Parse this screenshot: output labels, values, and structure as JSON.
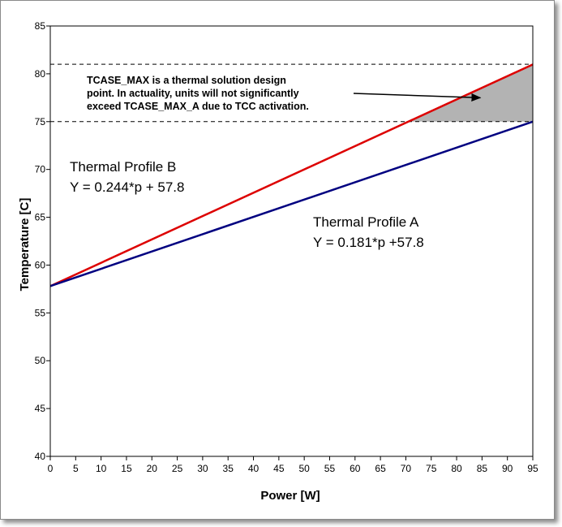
{
  "chart_data": {
    "type": "line",
    "title": "",
    "xlabel": "Power [W]",
    "ylabel": "Temperature [C]",
    "xlim": [
      0,
      95
    ],
    "ylim": [
      40,
      85
    ],
    "xticks": [
      0,
      5,
      10,
      15,
      20,
      25,
      30,
      35,
      40,
      45,
      50,
      55,
      60,
      65,
      70,
      75,
      80,
      85,
      90,
      95
    ],
    "yticks": [
      40,
      45,
      50,
      55,
      60,
      65,
      70,
      75,
      80,
      85
    ],
    "series": [
      {
        "name": "Thermal Profile B",
        "equation": "Y = 0.244*p + 57.8",
        "slope": 0.244,
        "intercept": 57.8,
        "color": "#dd0000",
        "x": [
          0,
          95
        ]
      },
      {
        "name": "Thermal Profile A",
        "equation": "Y = 0.181*p +57.8",
        "slope": 0.181,
        "intercept": 57.8,
        "color": "#000080",
        "x": [
          0,
          95
        ]
      }
    ],
    "reference_lines": [
      {
        "name": "TCASE_MAX",
        "y": 81,
        "style": "dashed"
      },
      {
        "name": "TCASE_MAX_A",
        "y": 75,
        "style": "dashed"
      }
    ],
    "shaded_region": {
      "between": "Thermal Profile B and y=75",
      "color": "#b3b3b3"
    },
    "annotation": {
      "lines": [
        "TCASE_MAX is a thermal solution design",
        "point. In actuality, units will not significantly",
        "exceed TCASE_MAX_A due to TCC activation."
      ],
      "arrow_target": {
        "x": 85,
        "y": 77.5
      }
    }
  }
}
